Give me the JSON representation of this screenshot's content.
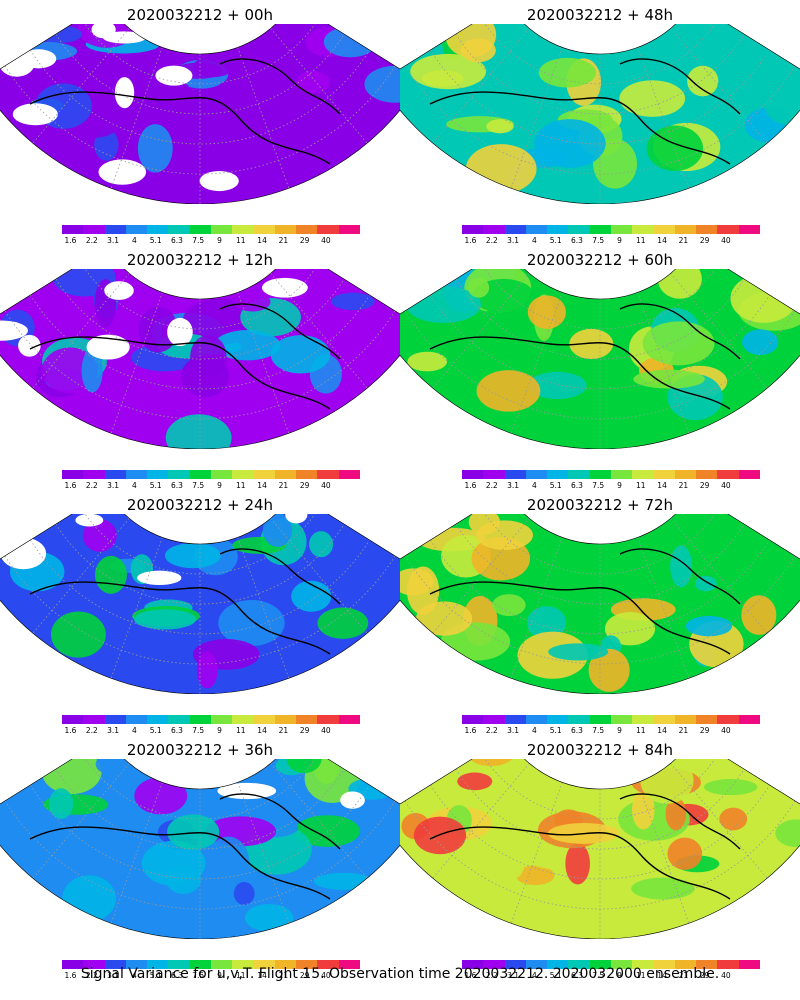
{
  "colorbar": {
    "labels": [
      "1.6",
      "2.2",
      "3.1",
      "4",
      "5.1",
      "6.3",
      "7.5",
      "9",
      "11",
      "14",
      "21",
      "29",
      "40"
    ],
    "colors": [
      "#8a00e6",
      "#a000f0",
      "#2a4af0",
      "#1e8cf0",
      "#00b4e6",
      "#00c8b4",
      "#00d23c",
      "#78e63c",
      "#c8ea3c",
      "#f0d23c",
      "#f0b428",
      "#f08228",
      "#f03c3c",
      "#f00a82"
    ]
  },
  "panels": [
    {
      "title": "2020032212 + 00h",
      "intensity": 0.0
    },
    {
      "title": "2020032212 + 48h",
      "intensity": 0.5
    },
    {
      "title": "2020032212 + 12h",
      "intensity": 0.12
    },
    {
      "title": "2020032212 + 60h",
      "intensity": 0.62
    },
    {
      "title": "2020032212 + 24h",
      "intensity": 0.25
    },
    {
      "title": "2020032212 + 72h",
      "intensity": 0.72
    },
    {
      "title": "2020032212 + 36h",
      "intensity": 0.37
    },
    {
      "title": "2020032212 + 84h",
      "intensity": 0.85
    }
  ],
  "caption": "Signal Variance for u,v,T. Flight 15. Observation time 2020032212. 2020032000 ensemble."
}
